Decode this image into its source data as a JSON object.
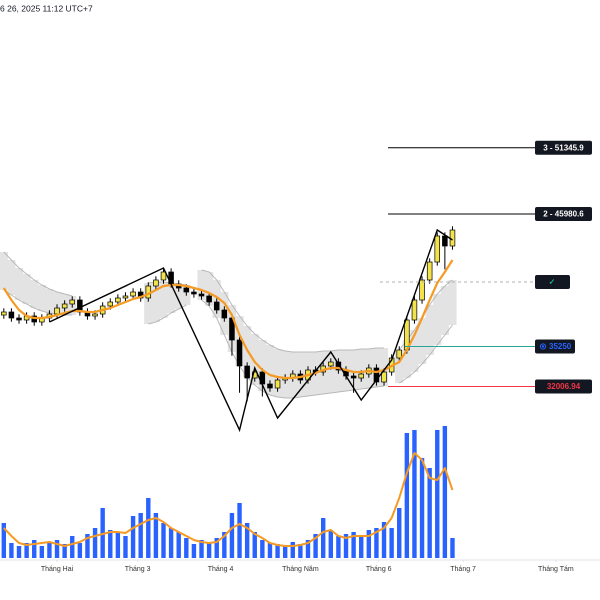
{
  "chart_data": {
    "type": "candlestick",
    "title": "6 26, 2025 11:12 UTC+7",
    "categories": [
      null,
      null,
      null,
      null,
      null,
      null,
      null,
      null,
      null,
      null,
      null,
      null,
      null,
      null,
      null,
      null,
      null,
      null,
      null,
      null,
      null,
      null,
      null,
      null,
      null,
      null,
      null,
      null,
      null,
      null,
      null,
      null,
      null,
      null,
      null,
      null,
      null,
      null,
      null,
      null,
      null,
      null,
      null,
      null,
      null,
      null,
      null,
      null,
      null,
      null,
      null,
      null,
      null,
      null,
      null,
      null,
      null,
      null,
      null,
      null
    ],
    "open": [
      37800,
      38043,
      37557,
      37395,
      37719,
      37233,
      37557,
      37881,
      38367,
      38691,
      39015,
      38043,
      37719,
      37881,
      38529,
      38853,
      39177,
      39339,
      39663,
      39177,
      40149,
      40635,
      41283,
      40311,
      39987,
      39663,
      39501,
      39339,
      38853,
      38205,
      37557,
      35775,
      33669,
      32697,
      33183,
      32211,
      31887,
      32535,
      32697,
      33021,
      32535,
      33345,
      33183,
      33669,
      33993,
      33345,
      32859,
      32697,
      33021,
      33507,
      32373,
      33183,
      34317,
      34965,
      37395,
      39015,
      40635,
      42093,
      44199,
      43389
    ],
    "high": [
      38343,
      38343,
      37857,
      38019,
      38019,
      37857,
      38181,
      38667,
      38991,
      39315,
      39315,
      38343,
      38181,
      38829,
      39153,
      39477,
      39639,
      39963,
      39963,
      40449,
      40935,
      41583,
      41583,
      40611,
      40287,
      39963,
      39801,
      39639,
      39153,
      38505,
      37857,
      36075,
      33969,
      33483,
      33483,
      32511,
      32835,
      32997,
      33321,
      33321,
      33645,
      33645,
      33969,
      34293,
      34293,
      33645,
      33159,
      33321,
      33807,
      33807,
      33483,
      34617,
      35265,
      37695,
      39315,
      40935,
      42393,
      44499,
      44499,
      44985
    ],
    "low": [
      37500,
      37257,
      37095,
      37095,
      36933,
      36933,
      37257,
      37581,
      38067,
      38391,
      37743,
      37419,
      37419,
      37581,
      38229,
      38553,
      38877,
      39039,
      38877,
      38877,
      39849,
      40335,
      40011,
      39687,
      39363,
      39201,
      39039,
      38553,
      37905,
      37257,
      34500,
      31500,
      30800,
      32397,
      31200,
      31587,
      31587,
      32235,
      32397,
      32235,
      32235,
      32883,
      32883,
      33369,
      33045,
      32559,
      31500,
      32397,
      32721,
      32073,
      32073,
      32883,
      34017,
      34665,
      37095,
      38715,
      40335,
      41793,
      41500,
      43089
    ],
    "close": [
      38043,
      37557,
      37395,
      37719,
      37233,
      37557,
      37881,
      38367,
      38691,
      39015,
      38043,
      37719,
      37881,
      38529,
      38853,
      39177,
      39339,
      39663,
      39177,
      40149,
      40635,
      41283,
      40311,
      39987,
      39663,
      39501,
      39339,
      38853,
      38205,
      37557,
      35775,
      33669,
      32697,
      33183,
      32211,
      31887,
      32535,
      32697,
      33021,
      32535,
      33345,
      33183,
      33669,
      33993,
      33345,
      32859,
      32697,
      33021,
      33507,
      32373,
      33183,
      34317,
      34965,
      37395,
      39015,
      40635,
      42093,
      44199,
      43389,
      44685
    ],
    "up_color": "#f2e34c",
    "down_color": "#000000",
    "ma": {
      "color": "#f59a23",
      "values": [
        39987,
        39015,
        38205,
        37719,
        37557,
        37557,
        37638,
        37800,
        37962,
        38124,
        38124,
        38043,
        38043,
        38205,
        38367,
        38610,
        38853,
        39096,
        39258,
        39501,
        39825,
        40149,
        40230,
        40230,
        40149,
        39987,
        39825,
        39582,
        39258,
        38772,
        37800,
        36180,
        34965,
        33993,
        33345,
        32940,
        32778,
        32697,
        32697,
        32778,
        32940,
        33102,
        33345,
        33507,
        33507,
        33345,
        33183,
        33183,
        33264,
        33183,
        33345,
        33669,
        33993,
        34965,
        36180,
        37557,
        39015,
        40392,
        41283,
        42255
      ]
    },
    "band": {
      "color": "#e3e3e3",
      "edge_color": "#b8b8b8",
      "upper": [
        42903,
        42255,
        41607,
        41121,
        40635,
        40230,
        39906,
        39663,
        39501,
        39339,
        null,
        null,
        null,
        null,
        null,
        null,
        null,
        null,
        null,
        40392,
        40473,
        40473,
        40392,
        40311,
        40230,
        null,
        41445,
        41283,
        40635,
        39663,
        38610,
        37719,
        36909,
        36261,
        35775,
        35370,
        35046,
        34884,
        34803,
        34803,
        34803,
        34803,
        34884,
        34884,
        34965,
        34965,
        34965,
        35046,
        35046,
        35127,
        35127,
        null,
        34965,
        35775,
        36585,
        37557,
        38610,
        39501,
        40149,
        40635
      ],
      "lower": [
        39825,
        39420,
        39015,
        38691,
        38367,
        38124,
        37962,
        37881,
        37800,
        37800,
        null,
        null,
        null,
        null,
        null,
        null,
        null,
        null,
        null,
        37071,
        37233,
        37557,
        37962,
        38286,
        38610,
        null,
        39015,
        38529,
        37557,
        36180,
        34803,
        33669,
        32778,
        32130,
        31644,
        31320,
        31158,
        31077,
        31077,
        31158,
        31239,
        31320,
        31401,
        31482,
        31563,
        31644,
        31725,
        31806,
        31887,
        31968,
        32049,
        null,
        32292,
        32697,
        33183,
        33831,
        34560,
        35370,
        36180,
        36990
      ]
    },
    "zigzag": {
      "color": "#000000",
      "x": [
        6,
        21,
        31,
        33,
        36,
        43,
        47,
        51,
        57,
        59
      ],
      "values": [
        37233,
        41607,
        28485,
        33507,
        29457,
        34803,
        30915,
        34155,
        44685,
        43875
      ]
    },
    "levels": [
      {
        "value": 51345.9,
        "label": "3 - 51345.9",
        "color": "#000000",
        "text_color": "#ffffff"
      },
      {
        "value": 45980.6,
        "label": "2 - 45980.6",
        "color": "#000000",
        "text_color": "#ffffff"
      },
      {
        "value": 40473,
        "label": "✓",
        "color": "#b0b0b0",
        "text_color": "#22ab94",
        "dashed": true
      },
      {
        "value": 35250,
        "label": "35250",
        "color": "#26a69a",
        "text_color": "#2962ff"
      },
      {
        "value": 32006.94,
        "label": "32006.94",
        "color": "#f23645",
        "text_color": "#f23645"
      }
    ],
    "volume": {
      "color": "#2962ff",
      "ma_color": "#f59a23",
      "lim": [
        0,
        140
      ],
      "values": [
        35,
        15,
        12,
        15,
        18,
        12,
        16,
        18,
        14,
        22,
        15,
        24,
        30,
        50,
        28,
        26,
        22,
        42,
        45,
        60,
        45,
        35,
        30,
        26,
        20,
        14,
        18,
        16,
        20,
        26,
        45,
        55,
        35,
        26,
        18,
        15,
        14,
        12,
        16,
        14,
        18,
        24,
        40,
        28,
        22,
        24,
        26,
        22,
        28,
        30,
        36,
        30,
        50,
        125,
        128,
        100,
        90,
        128,
        132,
        20
      ],
      "ma": [
        30,
        22,
        15,
        13,
        14,
        15,
        16,
        14,
        12,
        14,
        16,
        20,
        22,
        24,
        26,
        26,
        25,
        30,
        34,
        38,
        40,
        36,
        30,
        26,
        22,
        18,
        16,
        15,
        16,
        22,
        30,
        34,
        30,
        24,
        20,
        15,
        13,
        12,
        12,
        13,
        15,
        20,
        26,
        28,
        22,
        20,
        22,
        22,
        22,
        26,
        30,
        40,
        60,
        85,
        105,
        98,
        80,
        78,
        90,
        68
      ]
    },
    "xlim": [
      -0.5,
      78.4
    ],
    "ylim": [
      27675,
      63315
    ],
    "xticks": [
      {
        "value": 7,
        "label": "Tháng Hai"
      },
      {
        "value": 17.6,
        "label": "Tháng 3"
      },
      {
        "value": 28.5,
        "label": "Tháng 4"
      },
      {
        "value": 39,
        "label": "Tháng Năm"
      },
      {
        "value": 49.3,
        "label": "Tháng 6"
      },
      {
        "value": 60.4,
        "label": "Tháng 7"
      },
      {
        "value": 72.6,
        "label": "Tháng Tám"
      }
    ]
  }
}
